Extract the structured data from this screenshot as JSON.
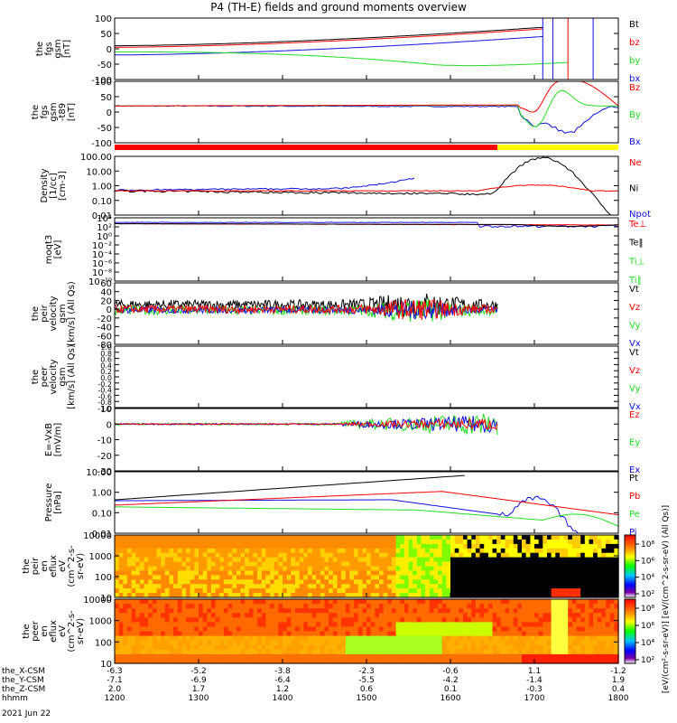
{
  "title": "P4 (TH-E) fields and ground moments overview",
  "date_label": "2021 Jun 22",
  "colors": {
    "black": "#000000",
    "red": "#ff0000",
    "green": "#22dd22",
    "blue": "#1010e0",
    "yellow": "#ffff00"
  },
  "chart_data": [
    {
      "type": "line",
      "id": "fgs",
      "ylabel": [
        "the",
        "fgs",
        "gsm",
        "[nT]"
      ],
      "ylim": [
        -100,
        100
      ],
      "yticks": [
        "100",
        "50",
        "0",
        "-50",
        "-100"
      ],
      "legend": [
        {
          "label": "Bt",
          "color": "#000000"
        },
        {
          "label": "bz",
          "color": "#ff0000"
        },
        {
          "label": "by",
          "color": "#22dd22"
        },
        {
          "label": "bx",
          "color": "#1010e0"
        }
      ]
    },
    {
      "type": "line",
      "id": "fgs_tsg",
      "ylabel": [
        "the",
        "fgs",
        "gsm",
        "-t89",
        "[nT]"
      ],
      "ylim": [
        -150,
        100
      ],
      "yticks": [
        "100",
        "50",
        "0",
        "-50",
        "-100"
      ],
      "legend": [
        {
          "label": "Bz",
          "color": "#ff0000"
        },
        {
          "label": "By",
          "color": "#22dd22"
        },
        {
          "label": "Bx",
          "color": "#1010e0"
        }
      ]
    },
    {
      "type": "line",
      "id": "density",
      "scale": "log",
      "ylabel": [
        "Density",
        "[1/cc]",
        "[cm-3]"
      ],
      "yticks": [
        "100.00",
        "10.00",
        "1.00",
        "0.10",
        "0.01"
      ],
      "legend": [
        {
          "label": "Ne",
          "color": "#ff0000"
        },
        {
          "label": "Ni",
          "color": "#000000"
        },
        {
          "label": "Npot",
          "color": "#1010e0"
        }
      ]
    },
    {
      "type": "line",
      "id": "temperature",
      "scale": "log",
      "ylabel": [
        "moqt3",
        "[eV]"
      ],
      "yticks": [
        "10⁴",
        "10²",
        "10⁰",
        "10⁻²",
        "10⁻⁴",
        "10⁻⁶",
        "10⁻⁸",
        "10⁻¹⁰"
      ],
      "legend": [
        {
          "label": "Te⊥",
          "color": "#ff0000"
        },
        {
          "label": "Te‖",
          "color": "#000000"
        },
        {
          "label": "Ti⊥",
          "color": "#22dd22"
        },
        {
          "label": "Ti‖",
          "color": "#22dd22"
        }
      ]
    },
    {
      "type": "line",
      "id": "peir_velocity",
      "ylabel": [
        "the",
        "peir",
        "velocity",
        "gsm",
        "[km/s] (All Qs)"
      ],
      "ylim": [
        -80,
        60
      ],
      "yticks": [
        "60",
        "40",
        "20",
        "0",
        "-20",
        "-40",
        "-60",
        "-80"
      ],
      "legend": [
        {
          "label": "Vt",
          "color": "#000000"
        },
        {
          "label": "Vz",
          "color": "#ff0000"
        },
        {
          "label": "Vy",
          "color": "#22dd22"
        },
        {
          "label": "Vx",
          "color": "#1010e0"
        }
      ]
    },
    {
      "type": "line",
      "id": "peer_velocity",
      "ylabel": [
        "the",
        "peer",
        "velocity",
        "gsm",
        "[km/s] (All Qs)"
      ],
      "ylim": [
        -1.0,
        1.0
      ],
      "yticks": [
        "1.0",
        "0.8",
        "0.6",
        "0.4",
        "0.2",
        "0.0",
        "-0.2",
        "-0.4",
        "-0.6",
        "-0.8",
        "-1.0"
      ],
      "legend": [
        {
          "label": "Vt",
          "color": "#000000"
        },
        {
          "label": "Vz",
          "color": "#ff0000"
        },
        {
          "label": "Vy",
          "color": "#22dd22"
        },
        {
          "label": "Vx",
          "color": "#1010e0"
        }
      ]
    },
    {
      "type": "line",
      "id": "efield",
      "ylabel": [
        "E=-VxB",
        "[mV/m]"
      ],
      "ylim": [
        -30,
        10
      ],
      "yticks": [
        "10",
        "0",
        "-10",
        "-20",
        "-30"
      ],
      "legend": [
        {
          "label": "Ez",
          "color": "#ff0000"
        },
        {
          "label": "Ey",
          "color": "#22dd22"
        },
        {
          "label": "Ex",
          "color": "#1010e0"
        }
      ]
    },
    {
      "type": "line",
      "id": "pressure",
      "scale": "log",
      "ylabel": [
        "Pressure",
        "[nPa]"
      ],
      "yticks": [
        "10.00",
        "1.00",
        "0.10",
        "0.01"
      ],
      "legend": [
        {
          "label": "Pt",
          "color": "#000000"
        },
        {
          "label": "Pb",
          "color": "#ff0000"
        },
        {
          "label": "Pe",
          "color": "#22dd22"
        },
        {
          "label": "Pi",
          "color": "#1010e0"
        }
      ]
    },
    {
      "type": "heatmap",
      "id": "peir_eflux",
      "ylabel": [
        "the",
        "peir",
        "en",
        "eflux",
        "eV",
        "(cm^2-s-",
        "sr-eV)"
      ],
      "yticks": [
        "10000",
        "1000",
        "100",
        "10"
      ],
      "colorbar_ticks": [
        "10⁸",
        "10⁶",
        "10⁴",
        "10²"
      ]
    },
    {
      "type": "heatmap",
      "id": "peer_eflux",
      "ylabel": [
        "the",
        "peer",
        "en",
        "eflux",
        "eV",
        "(cm^2-s-",
        "sr-eV)"
      ],
      "yticks": [
        "10000",
        "1000",
        "100",
        "10"
      ],
      "colorbar_ticks": [
        "10⁸",
        "10⁶",
        "10⁴",
        "10²"
      ]
    }
  ],
  "colorbar_label": "[eV/(cm²-s-sr-eV)] [eV/(cm^2-s-sr-eV) (All Qs)]",
  "x_axis": {
    "rows": [
      {
        "label": "the_X-CSM",
        "values": [
          "-6.3",
          "-5.2",
          "-3.8",
          "-2.3",
          "-0.6",
          "1.1",
          "-1.2"
        ]
      },
      {
        "label": "the_Y-CSM",
        "values": [
          "-7.1",
          "-6.9",
          "-6.4",
          "-5.5",
          "-4.2",
          "-1.4",
          "1.9"
        ]
      },
      {
        "label": "the_Z-CSM",
        "values": [
          "2.0",
          "1.7",
          "1.2",
          "0.6",
          "0.1",
          "-0.3",
          "0.4"
        ]
      },
      {
        "label": "hhmm",
        "values": [
          "1200",
          "1300",
          "1400",
          "1500",
          "1600",
          "1700",
          "1800"
        ]
      }
    ]
  }
}
